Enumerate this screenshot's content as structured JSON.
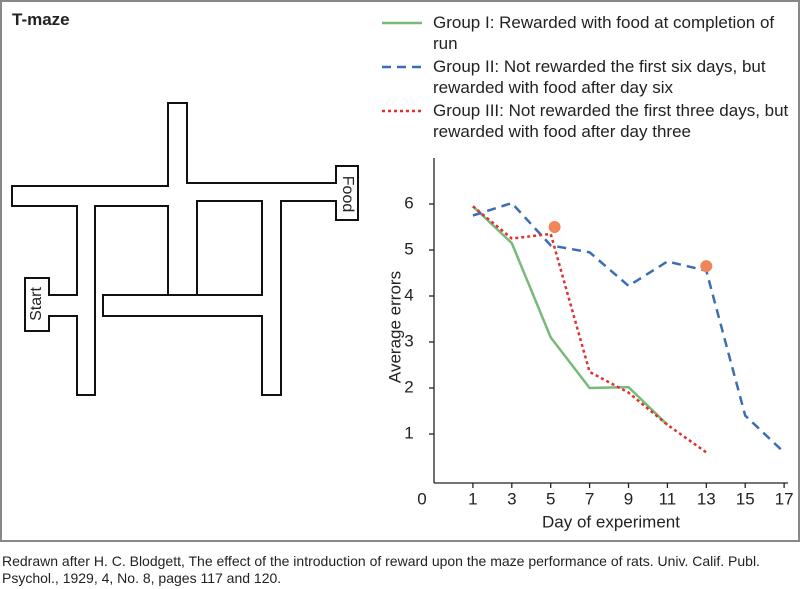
{
  "title": "T-maze",
  "maze": {
    "start": "Start",
    "food": "Food"
  },
  "chart_data": {
    "type": "line",
    "xlabel": "Day of experiment",
    "ylabel": "Average errors",
    "xlim": [
      -1,
      17.2
    ],
    "xticks": [
      1,
      3,
      5,
      7,
      9,
      11,
      13,
      15,
      17
    ],
    "ylim": [
      0,
      7
    ],
    "yticks": [
      0,
      1,
      2,
      3,
      4,
      5,
      6
    ],
    "series": [
      {
        "name": "Group I: Rewarded with food at completion of run",
        "color": "#7ab97a",
        "style": "solid",
        "x": [
          1,
          3,
          5,
          7,
          9,
          11
        ],
        "values": [
          5.95,
          5.15,
          3.1,
          2.0,
          2.02,
          1.2
        ]
      },
      {
        "name": "Group II: Not rewarded the first six days, but rewarded with food after day six",
        "color": "#3a6db5",
        "style": "dashed",
        "x": [
          1,
          3,
          5,
          7,
          9,
          11,
          13,
          15,
          17
        ],
        "values": [
          5.75,
          6.02,
          5.1,
          4.95,
          4.22,
          4.75,
          4.55,
          1.4,
          0.6
        ]
      },
      {
        "name": "Group III: Not rewarded the first three days, but rewarded with food after day three",
        "color": "#e03030",
        "style": "dotted",
        "x": [
          1,
          3,
          5,
          7,
          9,
          11,
          13
        ],
        "values": [
          5.95,
          5.25,
          5.35,
          2.35,
          1.9,
          1.2,
          0.6
        ]
      }
    ],
    "markers": {
      "color": "#f0875a",
      "x": [
        5.2,
        13
      ],
      "values": [
        5.5,
        4.65
      ]
    }
  },
  "caption": "Redrawn after H. C. Blodgett, The effect of the introduction of reward upon the maze performance of rats. Univ. Calif. Publ. Psychol., 1929, 4, No. 8, pages 117 and 120."
}
